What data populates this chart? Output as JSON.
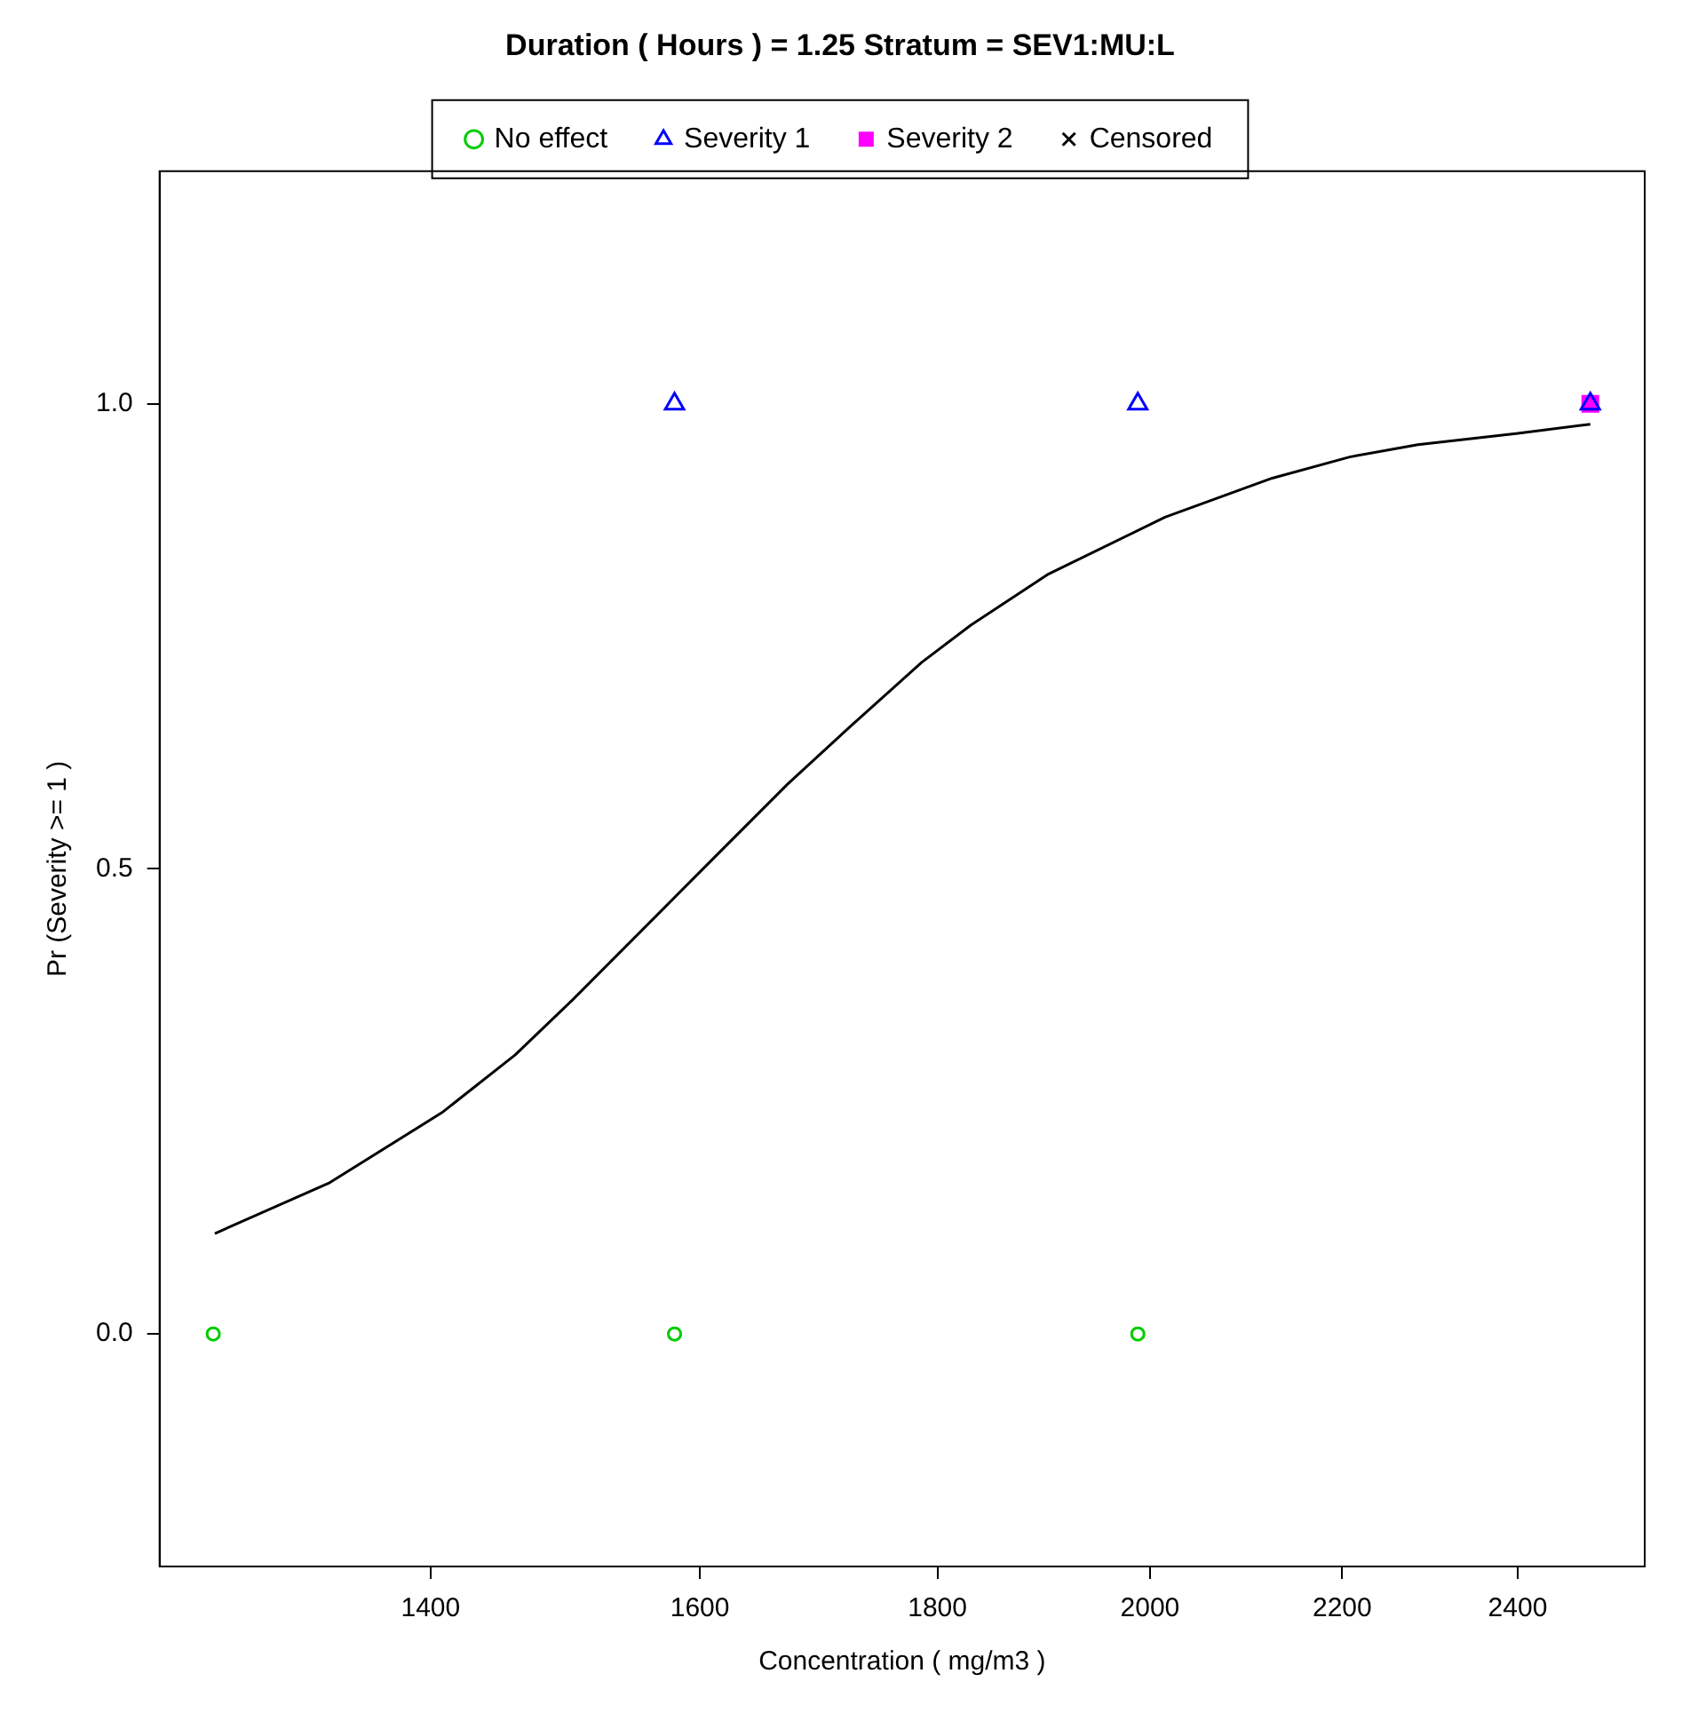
{
  "chart_data": {
    "type": "scatter",
    "title": "Duration ( Hours ) = 1.25 Stratum = SEV1:MU:L",
    "xlabel": "Concentration ( mg/m3 )",
    "ylabel": "Pr (Severity >= 1 )",
    "log": "x",
    "xlim": [
      1224,
      2556
    ],
    "xticks": [
      1400,
      1600,
      1800,
      2000,
      2200,
      2400
    ],
    "ylim": [
      -0.25,
      1.25
    ],
    "yticks": [
      {
        "value": 0,
        "label": "0.0"
      },
      {
        "value": 0.5,
        "label": "0.5"
      },
      {
        "value": 1,
        "label": "1.0"
      }
    ],
    "grid": false,
    "legend": "top",
    "series": [
      {
        "name": "No effect",
        "color": "#00cc00",
        "marker": "circle",
        "x": [
          1257,
          1580,
          1988
        ],
        "values": [
          0,
          0,
          0
        ]
      },
      {
        "name": "Severity 1",
        "color": "#0000ff",
        "marker": "triangle",
        "x": [
          1580,
          1988,
          2488
        ],
        "values": [
          1,
          1,
          1
        ]
      },
      {
        "name": "Severity 2",
        "color": "#ff00ff",
        "marker": "square",
        "x": [
          2488
        ],
        "values": [
          1
        ]
      },
      {
        "name": "Censored",
        "color": "#000000",
        "marker": "cross"
      },
      {
        "type": "line",
        "color": "#000000",
        "marker": "none",
        "line_style": "solid",
        "x": [
          1258,
          1331,
          1408,
          1460,
          1502,
          1569,
          1615,
          1671,
          1723,
          1786,
          1830,
          1902,
          2015,
          2125,
          2209,
          2284,
          2398,
          2488
        ],
        "values": [
          0.108,
          0.162,
          0.238,
          0.3,
          0.359,
          0.454,
          0.517,
          0.591,
          0.652,
          0.722,
          0.762,
          0.817,
          0.878,
          0.92,
          0.943,
          0.956,
          0.968,
          0.978
        ]
      }
    ]
  }
}
